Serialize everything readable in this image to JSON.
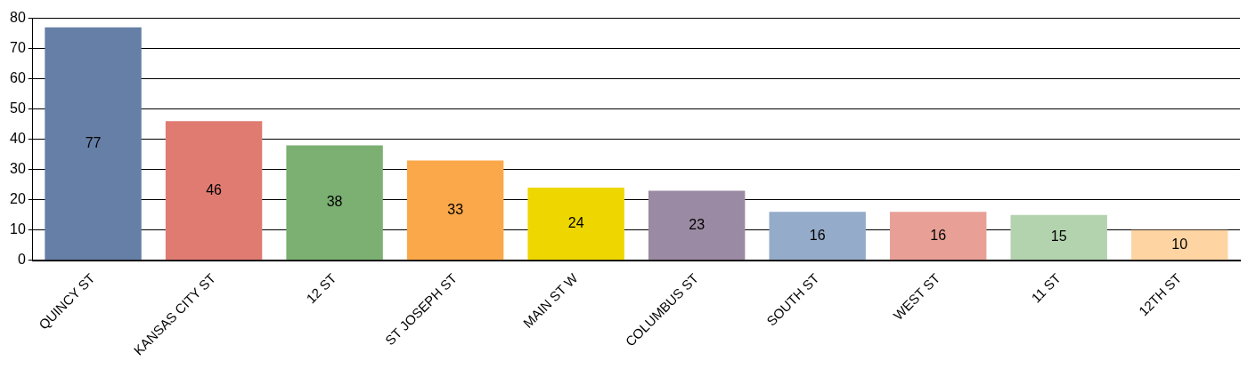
{
  "chart_data": {
    "type": "bar",
    "categories": [
      "QUINCY ST",
      "KANSAS CITY ST",
      "12 ST",
      "ST JOSEPH ST",
      "MAIN ST W",
      "COLUMBUS ST",
      "SOUTH ST",
      "WEST ST",
      "11 ST",
      "12TH ST"
    ],
    "values": [
      77,
      46,
      38,
      33,
      24,
      23,
      16,
      16,
      15,
      10
    ],
    "colors": [
      "#657fa6",
      "#e07b72",
      "#7bb072",
      "#fba84a",
      "#eed700",
      "#9b8aa3",
      "#94abc9",
      "#e8a096",
      "#b3d3ae",
      "#fdd4a2"
    ],
    "ylim": [
      0,
      80
    ],
    "yticks": [
      0,
      10,
      20,
      30,
      40,
      50,
      60,
      70,
      80
    ],
    "grid": "y",
    "legend": false,
    "data_labels": true
  }
}
